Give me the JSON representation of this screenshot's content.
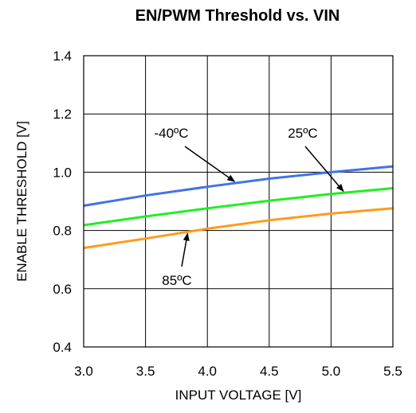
{
  "chart_data": {
    "type": "line",
    "title": "EN/PWM Threshold vs. VIN",
    "xlabel": "INPUT VOLTAGE [V]",
    "ylabel": "ENABLE THRESHOLD [V]",
    "xlim": [
      3.0,
      5.5
    ],
    "ylim": [
      0.4,
      1.4
    ],
    "xticks": [
      "3.0",
      "3.5",
      "4.0",
      "4.5",
      "5.0",
      "5.5"
    ],
    "yticks": [
      "0.4",
      "0.6",
      "0.8",
      "1.0",
      "1.2",
      "1.4"
    ],
    "grid": true,
    "series": [
      {
        "name": "-40ºC",
        "color": "#4472e6",
        "x": [
          3.0,
          3.5,
          4.0,
          4.5,
          5.0,
          5.5
        ],
        "values": [
          0.885,
          0.92,
          0.95,
          0.978,
          1.0,
          1.02
        ]
      },
      {
        "name": "25ºC",
        "color": "#22ee22",
        "x": [
          3.0,
          3.5,
          4.0,
          4.5,
          5.0,
          5.5
        ],
        "values": [
          0.818,
          0.848,
          0.876,
          0.902,
          0.925,
          0.945
        ]
      },
      {
        "name": "85ºC",
        "color": "#ff9b1a",
        "x": [
          3.0,
          3.5,
          4.0,
          4.5,
          5.0,
          5.5
        ],
        "values": [
          0.74,
          0.772,
          0.806,
          0.835,
          0.858,
          0.876
        ]
      }
    ],
    "annotations": [
      {
        "text": "-40ºC",
        "series": 0,
        "arrow_x": 4.22
      },
      {
        "text": "25ºC",
        "series": 1,
        "arrow_x": 5.1
      },
      {
        "text": "85ºC",
        "series": 2,
        "arrow_x": 3.84
      }
    ]
  }
}
